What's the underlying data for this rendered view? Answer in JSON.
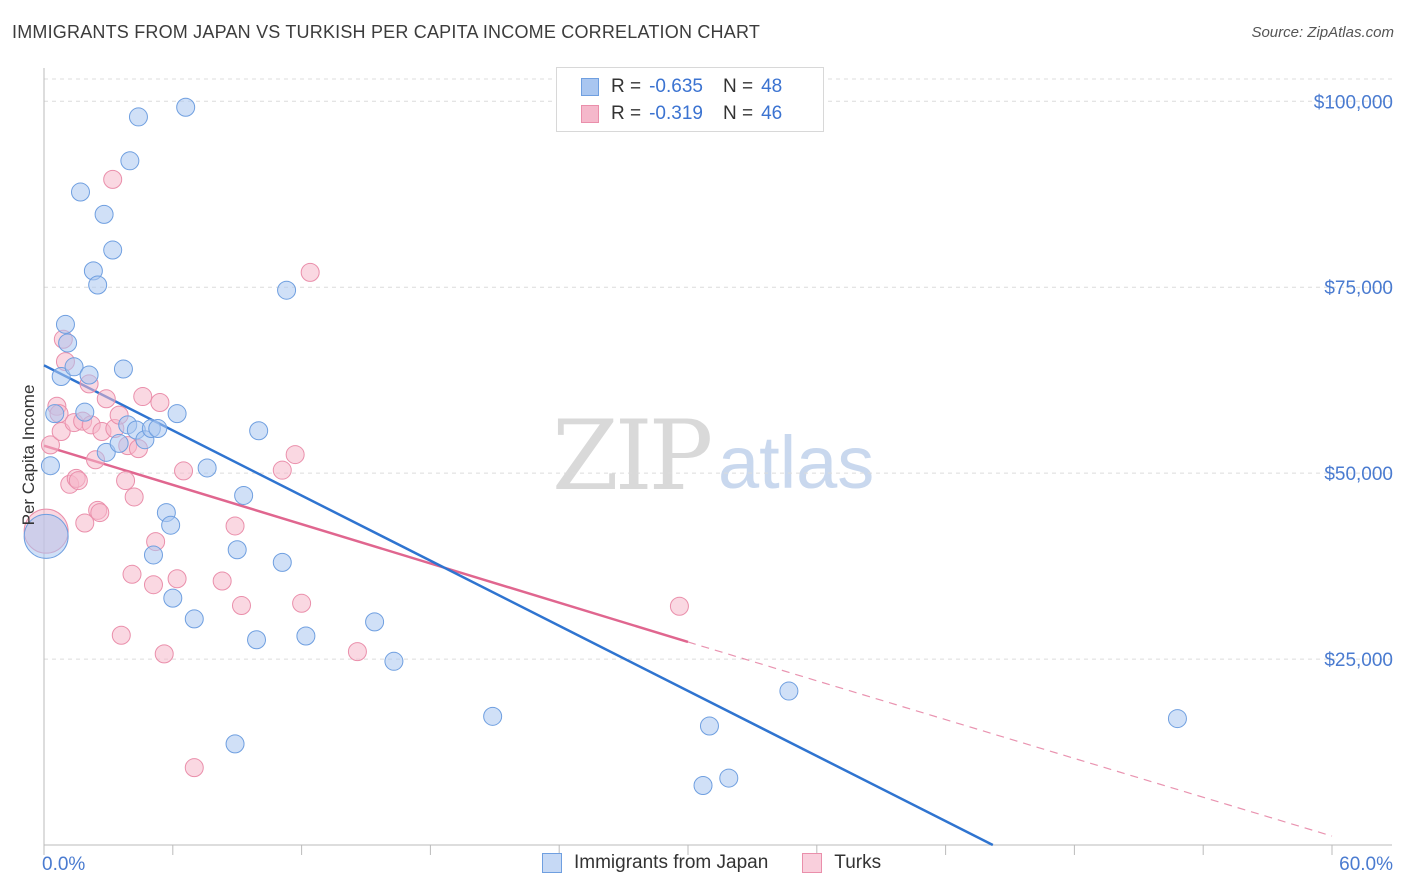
{
  "title": "IMMIGRANTS FROM JAPAN VS TURKISH PER CAPITA INCOME CORRELATION CHART",
  "source": "Source: ZipAtlas.com",
  "watermark": {
    "zip": "ZIP",
    "atlas": "atlas"
  },
  "legend": {
    "series1": {
      "r_label": "R =",
      "r_value": "-0.635",
      "n_label": "N =",
      "n_value": "48"
    },
    "series2": {
      "r_label": "R =",
      "r_value": "-0.319",
      "n_label": "N =",
      "n_value": "46"
    }
  },
  "bottom_legend": {
    "series1": "Immigrants from Japan",
    "series2": "Turks"
  },
  "colors": {
    "series1_fill": "#a9c6f0",
    "series1_stroke": "#6f9fe0",
    "series1_line": "#2f74d0",
    "series2_fill": "#f5b8cb",
    "series2_stroke": "#ea8fab",
    "series2_line": "#e0668f"
  },
  "chart_data": {
    "type": "scatter",
    "title": "IMMIGRANTS FROM JAPAN VS TURKISH PER CAPITA INCOME CORRELATION CHART",
    "xlabel": "",
    "ylabel": "Per Capita Income",
    "xlim": [
      0,
      60
    ],
    "ylim": [
      0,
      103000
    ],
    "x_tick_labels": [
      "0.0%",
      "60.0%"
    ],
    "y_ticks": [
      25000,
      50000,
      75000,
      100000
    ],
    "y_tick_labels": [
      "$25,000",
      "$50,000",
      "$75,000",
      "$100,000"
    ],
    "grid": true,
    "legend_position": "top-center",
    "series": [
      {
        "name": "Immigrants from Japan",
        "r": -0.635,
        "n": 48,
        "trend": {
          "x": [
            0,
            44.2
          ],
          "y": [
            64500,
            0
          ]
        },
        "points": [
          [
            0.1,
            41500
          ],
          [
            0.3,
            51000
          ],
          [
            0.5,
            58000
          ],
          [
            0.8,
            63000
          ],
          [
            1.0,
            70000
          ],
          [
            1.1,
            67500
          ],
          [
            1.4,
            64300
          ],
          [
            1.7,
            87800
          ],
          [
            1.9,
            58200
          ],
          [
            2.1,
            63200
          ],
          [
            2.3,
            77200
          ],
          [
            2.5,
            75300
          ],
          [
            2.8,
            84800
          ],
          [
            2.9,
            52800
          ],
          [
            3.2,
            80000
          ],
          [
            3.5,
            54000
          ],
          [
            3.7,
            64000
          ],
          [
            3.9,
            56500
          ],
          [
            4.0,
            92000
          ],
          [
            4.3,
            55800
          ],
          [
            4.4,
            97900
          ],
          [
            4.7,
            54500
          ],
          [
            5.0,
            56000
          ],
          [
            5.1,
            39000
          ],
          [
            5.3,
            56000
          ],
          [
            5.7,
            44700
          ],
          [
            5.9,
            43000
          ],
          [
            6.0,
            33200
          ],
          [
            6.2,
            58000
          ],
          [
            6.6,
            99200
          ],
          [
            7.0,
            30400
          ],
          [
            7.6,
            50700
          ],
          [
            8.9,
            13600
          ],
          [
            9.0,
            39700
          ],
          [
            9.3,
            47000
          ],
          [
            9.9,
            27600
          ],
          [
            10.0,
            55700
          ],
          [
            11.1,
            38000
          ],
          [
            11.3,
            74600
          ],
          [
            12.2,
            28100
          ],
          [
            15.4,
            30000
          ],
          [
            16.3,
            24700
          ],
          [
            20.9,
            17300
          ],
          [
            30.7,
            8000
          ],
          [
            31.0,
            16000
          ],
          [
            31.9,
            9000
          ],
          [
            34.7,
            20700
          ],
          [
            52.8,
            17000
          ]
        ]
      },
      {
        "name": "Turks",
        "r": -0.319,
        "n": 46,
        "trend": {
          "x": [
            0,
            30.0
          ],
          "y": [
            53700,
            27300
          ]
        },
        "trend_extension": {
          "x": [
            30.0,
            60.0
          ],
          "y": [
            27300,
            1200
          ]
        },
        "points": [
          [
            0.1,
            42200
          ],
          [
            0.3,
            53800
          ],
          [
            0.6,
            59000
          ],
          [
            0.7,
            58000
          ],
          [
            0.8,
            55600
          ],
          [
            0.9,
            68000
          ],
          [
            1.0,
            65000
          ],
          [
            1.2,
            48500
          ],
          [
            1.4,
            56800
          ],
          [
            1.5,
            49300
          ],
          [
            1.6,
            49000
          ],
          [
            1.8,
            57000
          ],
          [
            1.9,
            43300
          ],
          [
            2.1,
            62000
          ],
          [
            2.2,
            56500
          ],
          [
            2.4,
            51800
          ],
          [
            2.5,
            45000
          ],
          [
            2.6,
            44700
          ],
          [
            2.7,
            55600
          ],
          [
            2.9,
            60000
          ],
          [
            3.2,
            89500
          ],
          [
            3.3,
            56000
          ],
          [
            3.5,
            57800
          ],
          [
            3.6,
            28200
          ],
          [
            3.8,
            49000
          ],
          [
            3.9,
            53700
          ],
          [
            4.1,
            36400
          ],
          [
            4.2,
            46800
          ],
          [
            4.4,
            53300
          ],
          [
            4.6,
            60300
          ],
          [
            5.1,
            35000
          ],
          [
            5.2,
            40800
          ],
          [
            5.4,
            59500
          ],
          [
            5.6,
            25700
          ],
          [
            6.2,
            35800
          ],
          [
            6.5,
            50300
          ],
          [
            7.0,
            10400
          ],
          [
            8.3,
            35500
          ],
          [
            8.9,
            42900
          ],
          [
            9.2,
            32200
          ],
          [
            11.1,
            50400
          ],
          [
            11.7,
            52500
          ],
          [
            12.0,
            32500
          ],
          [
            12.4,
            77000
          ],
          [
            14.6,
            26000
          ],
          [
            29.6,
            32100
          ]
        ]
      }
    ]
  }
}
